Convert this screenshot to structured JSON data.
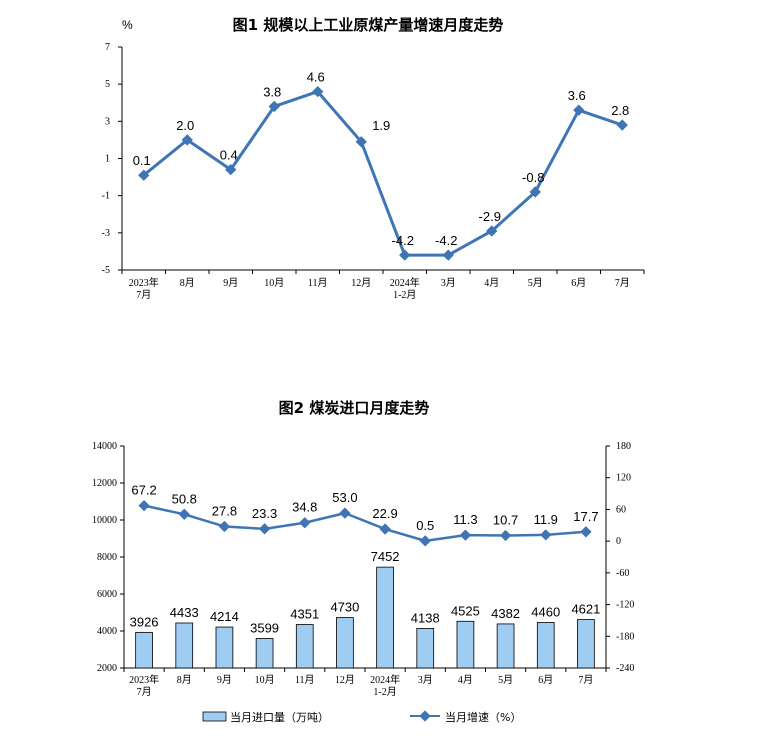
{
  "chart_data": [
    {
      "type": "line",
      "title": "图1  规模以上工业原煤产量增速月度走势",
      "ylabel": "%",
      "categories": [
        [
          "2023年",
          "7月"
        ],
        [
          "8月"
        ],
        [
          "9月"
        ],
        [
          "10月"
        ],
        [
          "11月"
        ],
        [
          "12月"
        ],
        [
          "2024年",
          "1-2月"
        ],
        [
          "3月"
        ],
        [
          "4月"
        ],
        [
          "5月"
        ],
        [
          "6月"
        ],
        [
          "7月"
        ]
      ],
      "yticks": [
        "7",
        "5",
        "3",
        "1",
        "-1",
        "-3",
        "-5"
      ],
      "ylim": [
        -5,
        7
      ],
      "series": [
        {
          "values": [
            0.1,
            2.0,
            0.4,
            3.8,
            4.6,
            1.9,
            -4.2,
            -4.2,
            -2.9,
            -0.8,
            3.6,
            2.8
          ],
          "labels": [
            "0.1",
            "2.0",
            "0.4",
            "3.8",
            "4.6",
            "1.9",
            "-4.2",
            "-4.2",
            "-2.9",
            "-0.8",
            "3.6",
            "2.8"
          ],
          "color": "#3f74b5"
        }
      ],
      "grid": false,
      "legend": "none"
    },
    {
      "type": "bar+line",
      "title": "图2  煤炭进口月度走势",
      "categories": [
        [
          "2023年",
          "7月"
        ],
        [
          "8月"
        ],
        [
          "9月"
        ],
        [
          "10月"
        ],
        [
          "11月"
        ],
        [
          "12月"
        ],
        [
          "2024年",
          "1-2月"
        ],
        [
          "3月"
        ],
        [
          "4月"
        ],
        [
          "5月"
        ],
        [
          "6月"
        ],
        [
          "7月"
        ]
      ],
      "left_yticks": [
        "14000",
        "12000",
        "10000",
        "8000",
        "6000",
        "4000",
        "2000"
      ],
      "left_ylim": [
        2000,
        14000
      ],
      "right_yticks": [
        "180",
        "120",
        "60",
        "0",
        "-60",
        "-120",
        "-180",
        "-240"
      ],
      "right_ylim": [
        -240,
        180
      ],
      "series": [
        {
          "name": "当月进口量（万吨）",
          "type": "bar",
          "axis": "left",
          "values": [
            3926,
            4433,
            4214,
            3599,
            4351,
            4730,
            7452,
            4138,
            4525,
            4382,
            4460,
            4621
          ],
          "labels": [
            "3926",
            "4433",
            "4214",
            "3599",
            "4351",
            "4730",
            "7452",
            "4138",
            "4525",
            "4382",
            "4460",
            "4621"
          ],
          "color": "#9fcdf2",
          "edge": "#000000"
        },
        {
          "name": "当月增速（%）",
          "type": "line",
          "axis": "right",
          "values": [
            67.2,
            50.8,
            27.8,
            23.3,
            34.8,
            53.0,
            22.9,
            0.5,
            11.3,
            10.7,
            11.9,
            17.7
          ],
          "labels": [
            "67.2",
            "50.8",
            "27.8",
            "23.3",
            "34.8",
            "53.0",
            "22.9",
            "0.5",
            "11.3",
            "10.7",
            "11.9",
            "17.7"
          ],
          "color": "#3f74b5"
        }
      ],
      "grid": false,
      "legend": "bottom"
    }
  ]
}
